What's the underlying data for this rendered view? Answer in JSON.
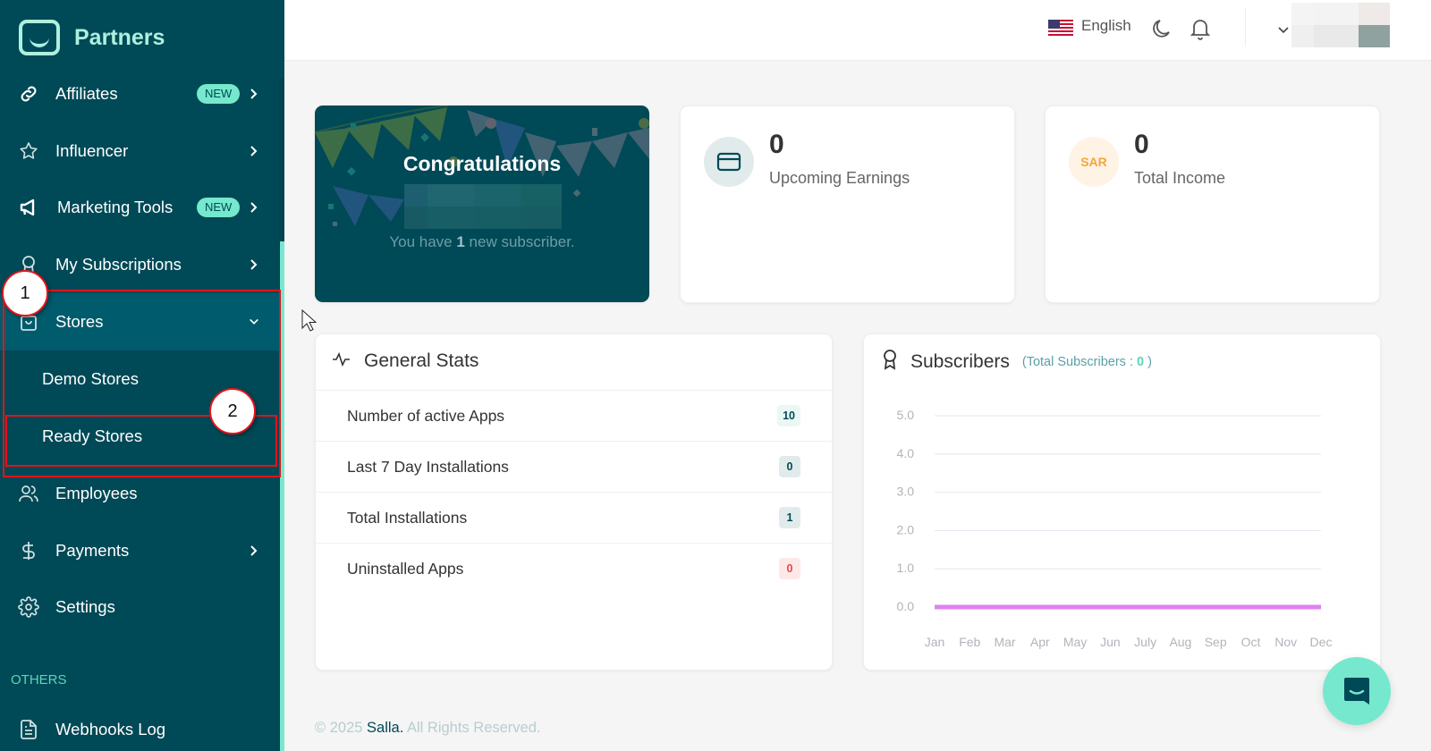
{
  "brand": {
    "name": "Partners",
    "accent": "#004956",
    "mint": "#76e8cd"
  },
  "sidebar": {
    "items": [
      {
        "label": "Affiliates",
        "icon": "link-icon",
        "badge": "NEW",
        "chevron": "right"
      },
      {
        "label": "Influencer",
        "icon": "star-icon",
        "chevron": "right"
      },
      {
        "label": "Marketing Tools",
        "icon": "megaphone-icon",
        "badge": "NEW",
        "chevron": "right"
      },
      {
        "label": "My Subscriptions",
        "icon": "award-icon",
        "chevron": "right"
      },
      {
        "label": "Stores",
        "icon": "shopping-bag-icon",
        "chevron": "down",
        "active": true,
        "children": [
          {
            "label": "Demo Stores"
          },
          {
            "label": "Ready Stores"
          }
        ]
      },
      {
        "label": "Employees",
        "icon": "users-icon"
      },
      {
        "label": "Payments",
        "icon": "dollar-icon",
        "chevron": "right"
      },
      {
        "label": "Settings",
        "icon": "gear-icon"
      }
    ],
    "section_others": "OTHERS",
    "others_items": [
      {
        "label": "Webhooks Log",
        "icon": "file-icon"
      }
    ]
  },
  "annotations": [
    {
      "number": "1",
      "target": "Stores"
    },
    {
      "number": "2",
      "target": "Ready Stores"
    }
  ],
  "topbar": {
    "language": "English",
    "icons": [
      "us-flag-icon",
      "moon-icon",
      "bell-icon",
      "chevron-down-icon"
    ]
  },
  "congrats": {
    "title": "Congratulations",
    "sub_prefix": "You have ",
    "sub_count": "1",
    "sub_suffix": " new subscriber."
  },
  "stats_cards": [
    {
      "value": "0",
      "label": "Upcoming Earnings",
      "icon": "credit-card-icon"
    },
    {
      "value": "0",
      "label": "Total Income",
      "icon_text": "SAR"
    }
  ],
  "general_stats": {
    "title": "General Stats",
    "rows": [
      {
        "label": "Number of active Apps",
        "value": "10",
        "bg": "#eaf8f5",
        "fg": "#004956"
      },
      {
        "label": "Last 7 Day Installations",
        "value": "0",
        "bg": "#e1ebec",
        "fg": "#004956"
      },
      {
        "label": "Total Installations",
        "value": "1",
        "bg": "#e1ebec",
        "fg": "#004956"
      },
      {
        "label": "Uninstalled Apps",
        "value": "0",
        "bg": "#fde8e8",
        "fg": "#e5484d"
      }
    ]
  },
  "subscribers": {
    "title": "Subscribers",
    "total_prefix": "(Total Subscribers : ",
    "total_value": "0",
    "total_suffix": " )"
  },
  "chart_data": {
    "type": "line",
    "title": "Subscribers",
    "categories": [
      "Jan",
      "Feb",
      "Mar",
      "Apr",
      "May",
      "Jun",
      "July",
      "Aug",
      "Sep",
      "Oct",
      "Nov",
      "Dec"
    ],
    "series": [
      {
        "name": "Subscribers",
        "values": [
          0,
          0,
          0,
          0,
          0,
          0,
          0,
          0,
          0,
          0,
          0,
          0
        ],
        "color": "#df83f0"
      }
    ],
    "yticks": [
      "0.0",
      "1.0",
      "2.0",
      "3.0",
      "4.0",
      "5.0"
    ],
    "ylim": [
      0,
      5
    ],
    "xlabel": "",
    "ylabel": "",
    "grid": true,
    "legend": "none"
  },
  "footer": {
    "prefix": "© 2025 ",
    "brand": "Salla.",
    "suffix": " All Rights Reserved."
  }
}
